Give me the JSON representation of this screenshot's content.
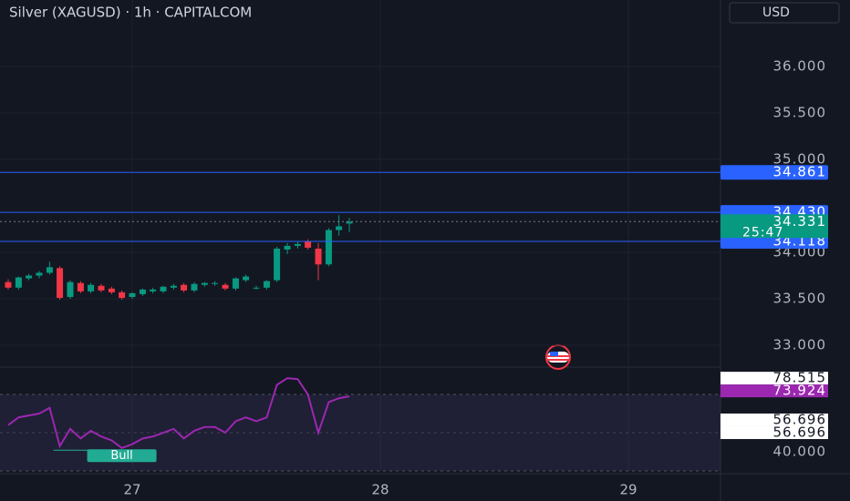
{
  "chart_data": [
    {
      "type": "candlestick",
      "title": "Silver (XAGUSD) · 1h · CAPITALCOM",
      "currency": "USD",
      "x": [
        26.5,
        26.542,
        26.583,
        26.625,
        26.667,
        26.708,
        26.75,
        26.792,
        26.833,
        26.875,
        26.917,
        26.958,
        27,
        27.042,
        27.083,
        27.125,
        27.167,
        27.208,
        27.25,
        27.292,
        27.333,
        27.375,
        27.417,
        27.458,
        27.5,
        27.542,
        27.583,
        27.625,
        27.667,
        27.708,
        27.75,
        27.792,
        27.833,
        27.875
      ],
      "open": [
        33.68,
        33.62,
        33.72,
        33.75,
        33.78,
        33.83,
        33.52,
        33.67,
        33.58,
        33.64,
        33.61,
        33.57,
        33.52,
        33.55,
        33.58,
        33.58,
        33.62,
        33.65,
        33.59,
        33.65,
        33.66,
        33.65,
        33.61,
        33.7,
        33.62,
        33.62,
        33.7,
        34.03,
        34.07,
        34.12,
        34.04,
        33.87,
        34.24,
        34.31
      ],
      "high": [
        33.71,
        33.74,
        33.77,
        33.8,
        33.9,
        33.85,
        33.7,
        33.69,
        33.67,
        33.66,
        33.63,
        33.59,
        33.57,
        33.61,
        33.62,
        33.64,
        33.66,
        33.67,
        33.68,
        33.68,
        33.69,
        33.67,
        33.73,
        33.76,
        33.64,
        33.7,
        34.06,
        34.1,
        34.12,
        34.14,
        34.1,
        34.26,
        34.4,
        34.37
      ],
      "low": [
        33.6,
        33.6,
        33.7,
        33.72,
        33.76,
        33.49,
        33.5,
        33.56,
        33.56,
        33.57,
        33.55,
        33.49,
        33.5,
        33.53,
        33.56,
        33.56,
        33.6,
        33.57,
        33.57,
        33.63,
        33.64,
        33.59,
        33.59,
        33.68,
        33.6,
        33.6,
        33.68,
        33.98,
        34.04,
        34.03,
        33.7,
        33.85,
        34.18,
        34.22
      ],
      "close": [
        33.62,
        33.73,
        33.75,
        33.78,
        33.84,
        33.51,
        33.68,
        33.58,
        33.65,
        33.59,
        33.57,
        33.51,
        33.56,
        33.6,
        33.6,
        33.63,
        33.64,
        33.59,
        33.66,
        33.67,
        33.67,
        33.61,
        33.72,
        33.74,
        33.62,
        33.69,
        34.04,
        34.07,
        34.09,
        34.05,
        33.87,
        34.24,
        34.28,
        34.33
      ],
      "up_color": "#089981",
      "down_color": "#f23645",
      "xlim": [
        26.467,
        29.371
      ],
      "xticks": [
        27,
        28,
        29
      ],
      "ylim": [
        32.765,
        36.716
      ],
      "yticks": [
        {
          "value": 33,
          "label": "33.000"
        },
        {
          "value": 33.5,
          "label": "33.500"
        },
        {
          "value": 34,
          "label": "34.000"
        },
        {
          "value": 35,
          "label": "35.000"
        },
        {
          "value": 35.5,
          "label": "35.500"
        },
        {
          "value": 36,
          "label": "36.000"
        }
      ],
      "grid": true,
      "price_lines": [
        {
          "value": 34.861,
          "label": "34.861",
          "color": "#2962ff"
        },
        {
          "value": 34.43,
          "label": "34.430",
          "color": "#2962ff"
        },
        {
          "value": 34.118,
          "label": "34.118",
          "color": "#2962ff"
        }
      ],
      "last_price": {
        "value": 34.331,
        "label": "34.331",
        "countdown": "25:47",
        "color": "#089981"
      }
    },
    {
      "type": "line",
      "x": [
        26.5,
        26.542,
        26.583,
        26.625,
        26.667,
        26.708,
        26.75,
        26.792,
        26.833,
        26.875,
        26.917,
        26.958,
        27,
        27.042,
        27.083,
        27.125,
        27.167,
        27.208,
        27.25,
        27.292,
        27.333,
        27.375,
        27.417,
        27.458,
        27.5,
        27.542,
        27.583,
        27.625,
        27.667,
        27.708,
        27.75,
        27.792,
        27.833,
        27.875
      ],
      "values": [
        54,
        58,
        59,
        60,
        63,
        43,
        52,
        47,
        51,
        48,
        46,
        42,
        44,
        47,
        48,
        50,
        52,
        47,
        51,
        53,
        53,
        50,
        56,
        58,
        56,
        58,
        75,
        78.5,
        78,
        70,
        50,
        66,
        68,
        69
      ],
      "color": "#9c27b0",
      "ylim": [
        28.6,
        84.3
      ],
      "yticks": [
        {
          "value": 40,
          "label": "40.000"
        }
      ],
      "band": [
        30,
        70
      ],
      "midline": 50,
      "markers": [
        {
          "value": 78.515,
          "label": "78.515",
          "bg": "#ffffff",
          "fg": "#131722"
        },
        {
          "value": 73.924,
          "label": "73.924",
          "bg": "#9c27b0",
          "fg": "#ffffff"
        },
        {
          "value": 56.696,
          "label": "56.696",
          "bg": "#ffffff",
          "fg": "#131722"
        },
        {
          "value": 56.696,
          "label": "56.696",
          "bg": "#ffffff",
          "fg": "#131722"
        }
      ],
      "annotation": {
        "text": "Bull",
        "x": 26.958,
        "y": 38,
        "color": "#22ab94"
      }
    }
  ]
}
